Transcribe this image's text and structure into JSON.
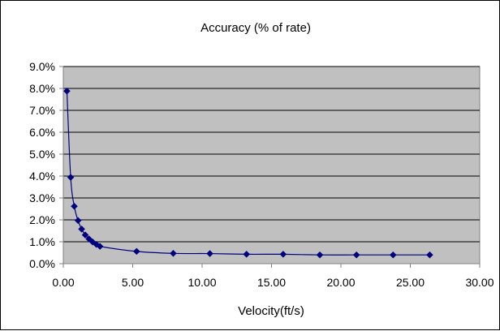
{
  "chart_data": {
    "type": "scatter",
    "title": "Accuracy (% of rate)",
    "xlabel": "Velocity(ft/s)",
    "ylabel": "",
    "xlim": [
      0,
      30
    ],
    "ylim": [
      0,
      0.09
    ],
    "x_ticks": [
      0,
      5,
      10,
      15,
      20,
      25,
      30
    ],
    "x_tick_labels": [
      "0.00",
      "5.00",
      "10.00",
      "15.00",
      "20.00",
      "25.00",
      "30.00"
    ],
    "y_ticks": [
      0,
      0.01,
      0.02,
      0.03,
      0.04,
      0.05,
      0.06,
      0.07,
      0.08,
      0.09
    ],
    "y_tick_labels": [
      "0.0%",
      "1.0%",
      "2.0%",
      "3.0%",
      "4.0%",
      "5.0%",
      "6.0%",
      "7.0%",
      "8.0%",
      "9.0%"
    ],
    "grid": true,
    "legend": false,
    "colors": {
      "series": "#000080",
      "plot_background": "#c0c0c0",
      "gridline": "#000000"
    },
    "series": [
      {
        "x": [
          0.26,
          0.53,
          0.79,
          1.06,
          1.32,
          1.58,
          1.85,
          2.11,
          2.38,
          2.64,
          5.28,
          7.92,
          10.56,
          13.2,
          15.84,
          18.48,
          21.12,
          23.76,
          26.4
        ],
        "y": [
          0.0788,
          0.0394,
          0.0262,
          0.0197,
          0.0158,
          0.0131,
          0.0113,
          0.0099,
          0.0088,
          0.0079,
          0.0056,
          0.0047,
          0.0046,
          0.0043,
          0.0043,
          0.004,
          0.004,
          0.004,
          0.004
        ]
      }
    ]
  }
}
